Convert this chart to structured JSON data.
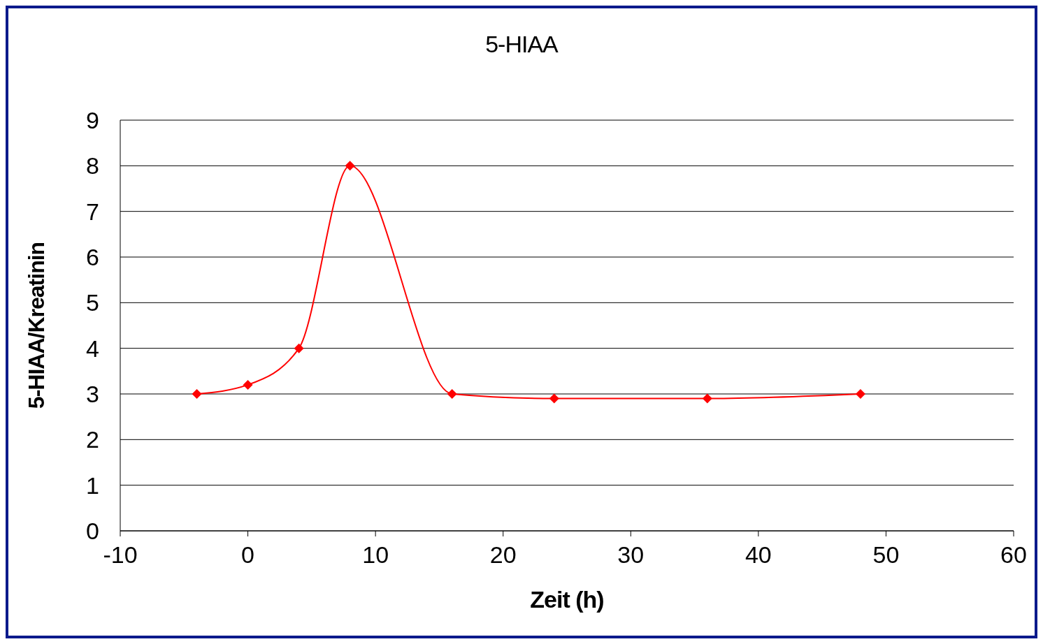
{
  "chart_data": {
    "type": "line",
    "title": "5-HIAA",
    "xlabel": "Zeit (h)",
    "ylabel": "5-HIAA/Kreatinin",
    "x": [
      -4,
      0,
      4,
      8,
      16,
      24,
      36,
      48
    ],
    "series": [
      {
        "color": "#ff0000",
        "values": [
          3,
          3.2,
          4,
          8,
          3,
          2.9,
          2.9,
          3
        ]
      }
    ],
    "xlim": [
      -10,
      60
    ],
    "xticks": [
      -10,
      0,
      10,
      20,
      30,
      40,
      50,
      60
    ],
    "ylim": [
      0,
      9
    ],
    "yticks": [
      0,
      1,
      2,
      3,
      4,
      5,
      6,
      7,
      8,
      9
    ],
    "grid": "y",
    "legend": false,
    "marker": "diamond",
    "line_style": "solid"
  }
}
